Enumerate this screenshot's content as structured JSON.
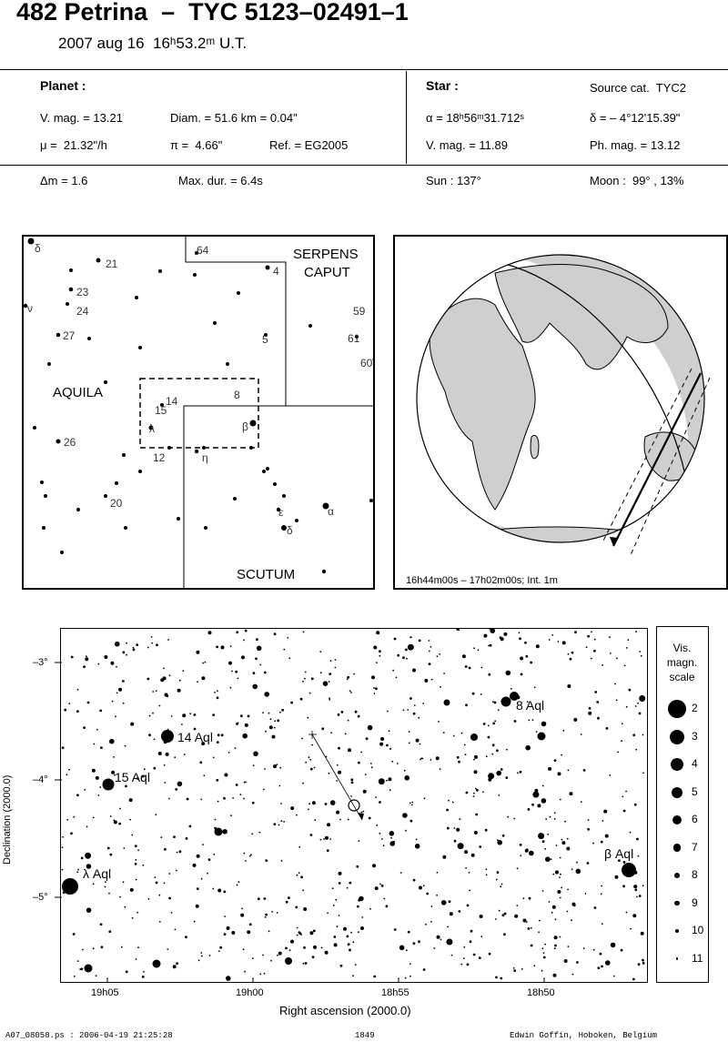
{
  "header": {
    "title": "482 Petrina  –  TYC 5123–02491–1",
    "subtitle": "2007 aug 16  16ʰ53.2ᵐ U.T."
  },
  "info": {
    "planet_heading": "Planet :",
    "vmag": "V. mag. = 13.21",
    "diam": "Diam. = 51.6 km = 0.04\"",
    "mu": "μ =  21.32\"/h",
    "pi": "π =  4.66\"",
    "ref": "Ref. = EG2005",
    "dm": "Δm = 1.6",
    "maxdur": "Max. dur. = 6.4s",
    "star_heading": "Star :",
    "source": "Source cat.  TYC2",
    "alpha": "α = 18ʰ56ᵐ31.712ˢ",
    "delta": "δ = – 4°12'15.39\"",
    "star_vmag": "V. mag. = 11.89",
    "phmag": "Ph. mag. = 13.12",
    "sun": "Sun : 137°",
    "moon": "Moon :  99° , 13%"
  },
  "finder": {
    "constellations": [
      "SERPENS",
      "CAPUT",
      "AQUILA",
      "SCUTUM"
    ],
    "labels": [
      "δ",
      "21",
      "23",
      "24",
      "ν",
      "27",
      "64",
      "4",
      "59",
      "61",
      "5",
      "60",
      "14",
      "15",
      "λ",
      "8",
      "β",
      "26",
      "12",
      "η",
      "20",
      "ε",
      "α",
      "δ"
    ]
  },
  "globe": {
    "caption": "16h44m00s – 17h02m00s; Int.  1m"
  },
  "chart": {
    "ylabel": "Declination (2000.0)",
    "xlabel": "Right ascension (2000.0)",
    "yticks": [
      "–3°",
      "–4°",
      "–5°"
    ],
    "xticks": [
      "19h05",
      "19h00",
      "18h55",
      "18h50"
    ],
    "star_labels": [
      "8 Aql",
      "14 Aql",
      "15 Aql",
      "β Aql",
      "λ Aql"
    ]
  },
  "scale": {
    "title1": "Vis.",
    "title2": "magn.",
    "title3": "scale",
    "items": [
      "2",
      "3",
      "4",
      "5",
      "6",
      "7",
      "8",
      "9",
      "10",
      "11"
    ]
  },
  "footer": {
    "left": "A07_08058.ps : 2006-04-19 21:25:28",
    "center": "1849",
    "right": "Edwin Goffin, Hoboken, Belgium"
  }
}
